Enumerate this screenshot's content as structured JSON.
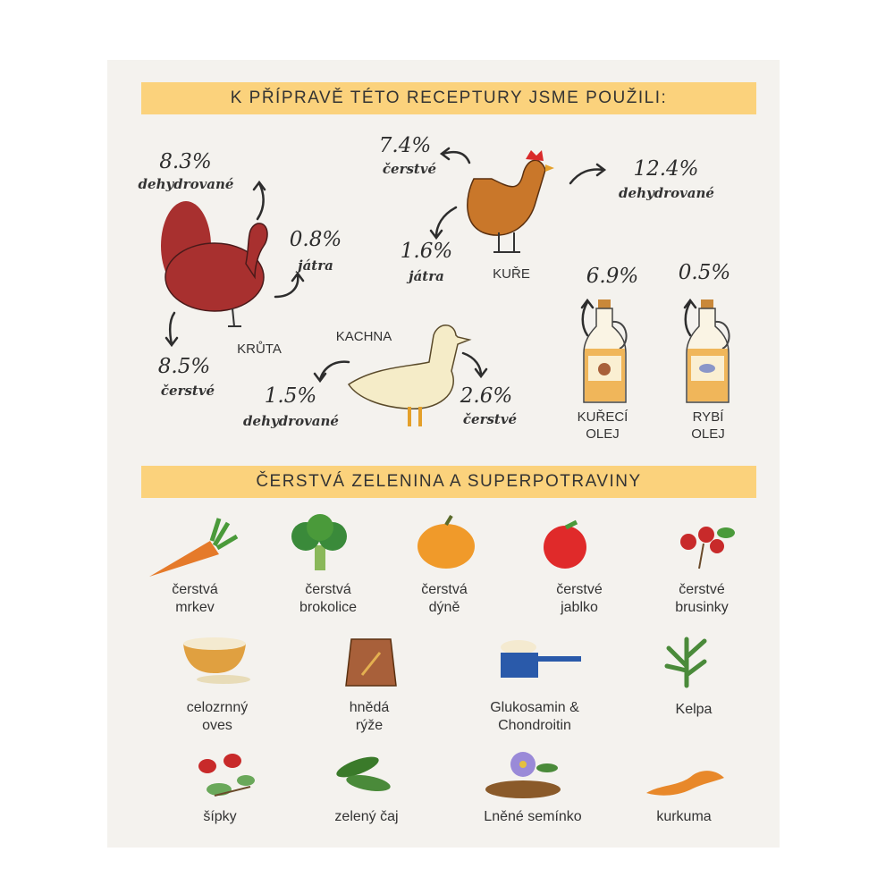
{
  "header1": "K PŘÍPRAVĚ TÉTO RECEPTURY JSME POUŽILI:",
  "header2": "ČERSTVÁ ZELENINA A SUPERPOTRAVINY",
  "turkey": {
    "name": "KRŮTA",
    "dehydrated_pct": "8.3%",
    "dehydrated_label": "dehydrované",
    "liver_pct": "0.8%",
    "liver_label": "játra",
    "fresh_pct": "8.5%",
    "fresh_label": "čerstvé",
    "color": "#a8302f"
  },
  "chicken": {
    "name": "KUŘE",
    "fresh_pct": "7.4%",
    "fresh_label": "čerstvé",
    "dehydrated_pct": "12.4%",
    "dehydrated_label": "dehydrované",
    "liver_pct": "1.6%",
    "liver_label": "játra",
    "color": "#c9772a"
  },
  "duck": {
    "name": "KACHNA",
    "dehydrated_pct": "1.5%",
    "dehydrated_label": "dehydrované",
    "fresh_pct": "2.6%",
    "fresh_label": "čerstvé",
    "color": "#f5ecc8"
  },
  "oils": [
    {
      "pct": "6.9%",
      "line1": "KUŘECÍ",
      "line2": "OLEJ",
      "icon": "chicken-icon"
    },
    {
      "pct": "0.5%",
      "line1": "RYBÍ",
      "line2": "OLEJ",
      "icon": "fish-icon"
    }
  ],
  "vegetables": [
    {
      "line1": "čerstvá",
      "line2": "mrkev",
      "icon": "carrot"
    },
    {
      "line1": "čerstvá",
      "line2": "brokolice",
      "icon": "broccoli"
    },
    {
      "line1": "čerstvá",
      "line2": "dýně",
      "icon": "pumpkin"
    },
    {
      "line1": "čerstvé",
      "line2": "jablko",
      "icon": "apple"
    },
    {
      "line1": "čerstvé",
      "line2": "brusinky",
      "icon": "cranberries"
    },
    {
      "line1": "celozrnný",
      "line2": "oves",
      "icon": "oats"
    },
    {
      "line1": "hnědá",
      "line2": "rýže",
      "icon": "rice-sack"
    },
    {
      "line1": "Glukosamin &",
      "line2": "Chondroitin",
      "icon": "scoop"
    },
    {
      "line1": "Kelpa",
      "line2": "",
      "icon": "kelp"
    },
    {
      "line1": "šípky",
      "line2": "",
      "icon": "rosehips"
    },
    {
      "line1": "zelený čaj",
      "line2": "",
      "icon": "tea-leaves"
    },
    {
      "line1": "Lněné semínko",
      "line2": "",
      "icon": "flaxseed"
    },
    {
      "line1": "kurkuma",
      "line2": "",
      "icon": "turmeric"
    }
  ],
  "colors": {
    "banner": "#fbd27c",
    "background": "#f4f2ee"
  }
}
